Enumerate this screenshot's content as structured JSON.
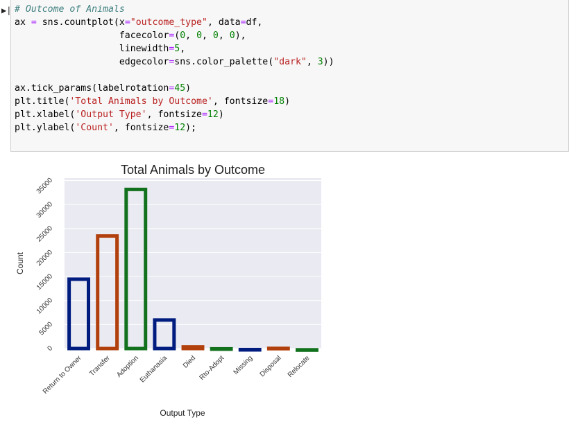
{
  "cell": {
    "marker": "▶|",
    "code_lines": [
      [
        {
          "t": "# Outcome of Animals",
          "c": "cm"
        }
      ],
      [
        {
          "t": "ax "
        },
        {
          "t": "=",
          "c": "op"
        },
        {
          "t": " sns.countplot(x"
        },
        {
          "t": "=",
          "c": "op"
        },
        {
          "t": "\"outcome_type\"",
          "c": "str"
        },
        {
          "t": ", data"
        },
        {
          "t": "=",
          "c": "op"
        },
        {
          "t": "df,"
        }
      ],
      [
        {
          "t": "                   facecolor"
        },
        {
          "t": "=",
          "c": "op"
        },
        {
          "t": "("
        },
        {
          "t": "0",
          "c": "num"
        },
        {
          "t": ", "
        },
        {
          "t": "0",
          "c": "num"
        },
        {
          "t": ", "
        },
        {
          "t": "0",
          "c": "num"
        },
        {
          "t": ", "
        },
        {
          "t": "0",
          "c": "num"
        },
        {
          "t": "),"
        }
      ],
      [
        {
          "t": "                   linewidth"
        },
        {
          "t": "=",
          "c": "op"
        },
        {
          "t": "5",
          "c": "num"
        },
        {
          "t": ","
        }
      ],
      [
        {
          "t": "                   edgecolor"
        },
        {
          "t": "=",
          "c": "op"
        },
        {
          "t": "sns.color_palette("
        },
        {
          "t": "\"dark\"",
          "c": "str"
        },
        {
          "t": ", "
        },
        {
          "t": "3",
          "c": "num"
        },
        {
          "t": "))"
        }
      ],
      [
        {
          "t": ""
        }
      ],
      [
        {
          "t": "ax.tick_params(labelrotation"
        },
        {
          "t": "=",
          "c": "op"
        },
        {
          "t": "45",
          "c": "num"
        },
        {
          "t": ")"
        }
      ],
      [
        {
          "t": "plt.title("
        },
        {
          "t": "'Total Animals by Outcome'",
          "c": "str"
        },
        {
          "t": ", fontsize"
        },
        {
          "t": "=",
          "c": "op"
        },
        {
          "t": "18",
          "c": "num"
        },
        {
          "t": ")"
        }
      ],
      [
        {
          "t": "plt.xlabel("
        },
        {
          "t": "'Output Type'",
          "c": "str"
        },
        {
          "t": ", fontsize"
        },
        {
          "t": "=",
          "c": "op"
        },
        {
          "t": "12",
          "c": "num"
        },
        {
          "t": ")"
        }
      ],
      [
        {
          "t": "plt.ylabel("
        },
        {
          "t": "'Count'",
          "c": "str"
        },
        {
          "t": ", fontsize"
        },
        {
          "t": "=",
          "c": "op"
        },
        {
          "t": "12",
          "c": "num"
        },
        {
          "t": ");"
        }
      ]
    ]
  },
  "chart_data": {
    "type": "bar",
    "title": "Total Animals by Outcome",
    "xlabel": "Output Type",
    "ylabel": "Count",
    "categories": [
      "Return to Owner",
      "Transfer",
      "Adoption",
      "Euthanasia",
      "Died",
      "Rto-Adopt",
      "Missing",
      "Disposal",
      "Relocate"
    ],
    "values": [
      14800,
      23800,
      33500,
      6300,
      700,
      300,
      150,
      400,
      100
    ],
    "yticks": [
      0,
      5000,
      10000,
      15000,
      20000,
      25000,
      30000,
      35000
    ],
    "ylim": [
      0,
      35500
    ],
    "grid": true,
    "edge_colors": [
      "#001c7f",
      "#b1400d",
      "#12711c"
    ],
    "background": "#eaeaf2"
  }
}
